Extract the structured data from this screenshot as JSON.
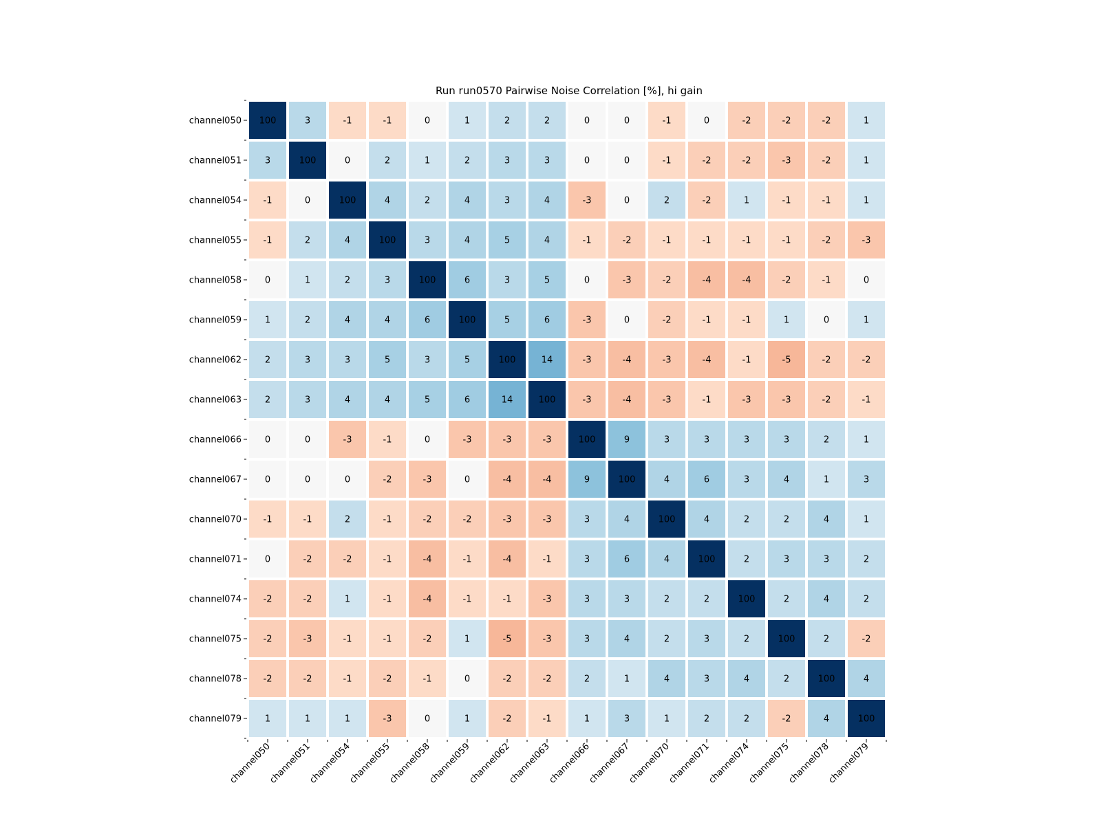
{
  "chart_data": {
    "type": "heatmap",
    "title": "Run run0570 Pairwise Noise Correlation [%], hi gain",
    "xlabel": "",
    "ylabel": "",
    "grid": false,
    "colormap": "RdBu (diverging, blue = positive, red = negative)",
    "color_range": [
      -100,
      100
    ],
    "colors": {
      "positive_max": "#053061",
      "negative_max": "#67001f",
      "neutral": "#f7f7f7",
      "text_dark": "#000000",
      "text_light": "#ffffff"
    },
    "x_categories": [
      "channel050",
      "channel051",
      "channel054",
      "channel055",
      "channel058",
      "channel059",
      "channel062",
      "channel063",
      "channel066",
      "channel067",
      "channel070",
      "channel071",
      "channel074",
      "channel075",
      "channel078",
      "channel079"
    ],
    "y_categories": [
      "channel050",
      "channel051",
      "channel054",
      "channel055",
      "channel058",
      "channel059",
      "channel062",
      "channel063",
      "channel066",
      "channel067",
      "channel070",
      "channel071",
      "channel074",
      "channel075",
      "channel078",
      "channel079"
    ],
    "values": [
      [
        100,
        3,
        -1,
        -1,
        0,
        1,
        2,
        2,
        0,
        0,
        -1,
        0,
        -2,
        -2,
        -2,
        1
      ],
      [
        3,
        100,
        0,
        2,
        1,
        2,
        3,
        3,
        0,
        0,
        -1,
        -2,
        -2,
        -3,
        -2,
        1
      ],
      [
        -1,
        0,
        100,
        4,
        2,
        4,
        3,
        4,
        -3,
        0,
        2,
        -2,
        1,
        -1,
        -1,
        1
      ],
      [
        -1,
        2,
        4,
        100,
        3,
        4,
        5,
        4,
        -1,
        -2,
        -1,
        -1,
        -1,
        -1,
        -2,
        -3
      ],
      [
        0,
        1,
        2,
        3,
        100,
        6,
        3,
        5,
        0,
        -3,
        -2,
        -4,
        -4,
        -2,
        -1,
        0
      ],
      [
        1,
        2,
        4,
        4,
        6,
        100,
        5,
        6,
        -3,
        0,
        -2,
        -1,
        -1,
        1,
        0,
        1
      ],
      [
        2,
        3,
        3,
        5,
        3,
        5,
        100,
        14,
        -3,
        -4,
        -3,
        -4,
        -1,
        -5,
        -2,
        -2
      ],
      [
        2,
        3,
        4,
        4,
        5,
        6,
        14,
        100,
        -3,
        -4,
        -3,
        -1,
        -3,
        -3,
        -2,
        -1
      ],
      [
        0,
        0,
        -3,
        -1,
        0,
        -3,
        -3,
        -3,
        100,
        9,
        3,
        3,
        3,
        3,
        2,
        1
      ],
      [
        0,
        0,
        0,
        -2,
        -3,
        0,
        -4,
        -4,
        9,
        100,
        4,
        6,
        3,
        4,
        1,
        3
      ],
      [
        -1,
        -1,
        2,
        -1,
        -2,
        -2,
        -3,
        -3,
        3,
        4,
        100,
        4,
        2,
        2,
        4,
        1
      ],
      [
        0,
        -2,
        -2,
        -1,
        -4,
        -1,
        -4,
        -1,
        3,
        6,
        4,
        100,
        2,
        3,
        3,
        2
      ],
      [
        -2,
        -2,
        1,
        -1,
        -4,
        -1,
        -1,
        -3,
        3,
        3,
        2,
        2,
        100,
        2,
        4,
        2
      ],
      [
        -2,
        -3,
        -1,
        -1,
        -2,
        1,
        -5,
        -3,
        3,
        4,
        2,
        3,
        2,
        100,
        2,
        -2
      ],
      [
        -2,
        -2,
        -1,
        -2,
        -1,
        0,
        -2,
        -2,
        2,
        1,
        4,
        3,
        4,
        2,
        100,
        4
      ],
      [
        1,
        1,
        1,
        -3,
        0,
        1,
        -2,
        -1,
        1,
        3,
        1,
        2,
        2,
        -2,
        4,
        100
      ]
    ]
  }
}
